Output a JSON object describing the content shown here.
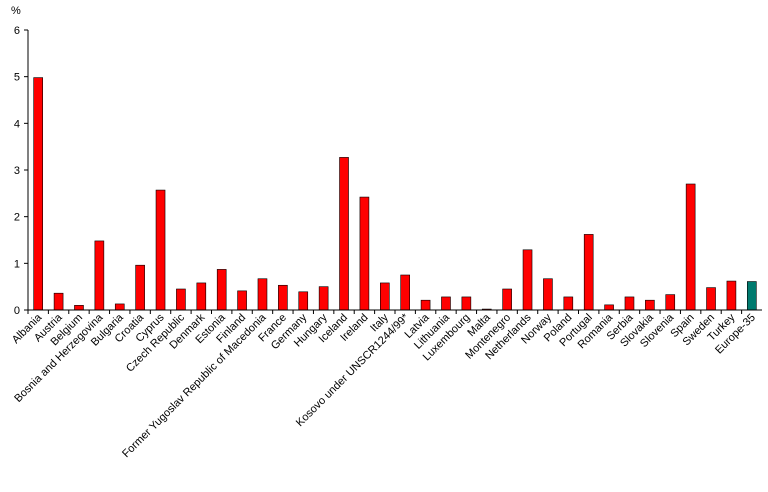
{
  "chart_data": {
    "type": "bar",
    "ylabel": "%",
    "ylim": [
      0,
      6
    ],
    "yticks": [
      "0",
      "1",
      "2",
      "3",
      "4",
      "5",
      "6"
    ],
    "grid": false,
    "legend": "none",
    "categories": [
      "Albania",
      "Austria",
      "Belgium",
      "Bosnia and Herzegovina",
      "Bulgaria",
      "Croatia",
      "Cyprus",
      "Czech Republic",
      "Denmark",
      "Estonia",
      "Finland",
      "Former Yugoslav Republic of Macedonia",
      "France",
      "Germany",
      "Hungary",
      "Iceland",
      "Ireland",
      "Italy",
      "Kosovo under UNSCR1244/99*",
      "Latvia",
      "Lithuania",
      "Luxembourg",
      "Malta",
      "Montenegro",
      "Netherlands",
      "Norway",
      "Poland",
      "Portugal",
      "Romania",
      "Serbia",
      "Slovakia",
      "Slovenia",
      "Spain",
      "Sweden",
      "Turkey",
      "Europe-35"
    ],
    "values": [
      4.98,
      0.36,
      0.1,
      1.48,
      0.13,
      0.96,
      2.57,
      0.45,
      0.58,
      0.87,
      0.41,
      0.67,
      0.53,
      0.39,
      0.5,
      3.27,
      2.42,
      0.58,
      0.75,
      0.21,
      0.28,
      0.28,
      0.02,
      0.45,
      1.29,
      0.67,
      0.28,
      1.62,
      0.11,
      0.28,
      0.21,
      0.33,
      2.7,
      0.48,
      0.62,
      0.61
    ],
    "bar_colors": {
      "default": "#ff0000",
      "highlight": "#007a6e",
      "highlight_category": "Europe-35"
    }
  }
}
